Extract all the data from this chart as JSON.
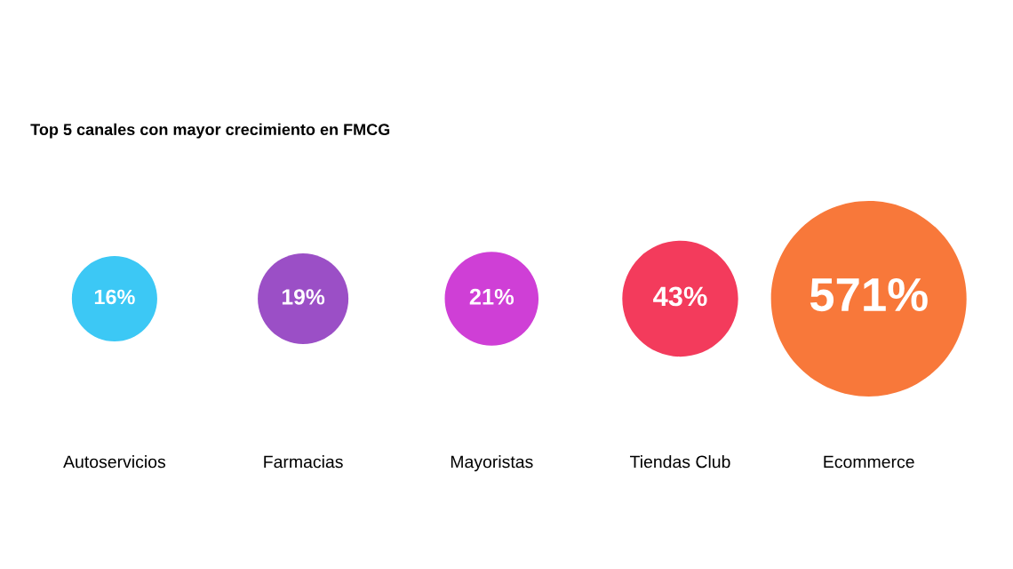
{
  "chart_data": {
    "type": "other",
    "title": "Top 5 canales con mayor crecimiento en FMCG",
    "categories": [
      "Autoservicios",
      "Farmacias",
      "Mayoristas",
      "Tiendas Club",
      "Ecommerce"
    ],
    "values": [
      16,
      19,
      21,
      43,
      571
    ],
    "value_labels": [
      "16%",
      "19%",
      "21%",
      "43%",
      "571%"
    ],
    "colors": [
      "#3cc8f5",
      "#9b4fc6",
      "#cf3fd6",
      "#f33b5c",
      "#f8783a"
    ]
  }
}
